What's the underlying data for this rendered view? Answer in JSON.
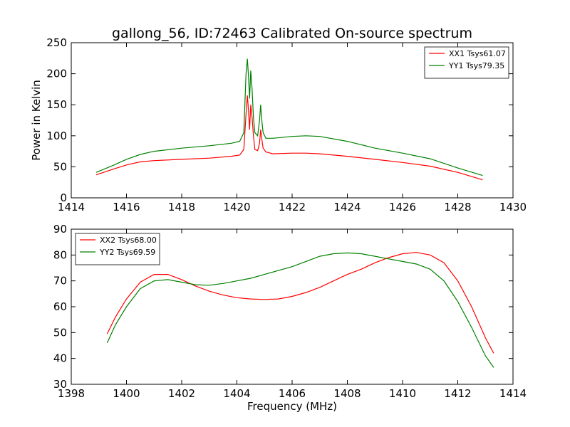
{
  "chart_data": [
    {
      "type": "line",
      "title": "gallong_56, ID:72463 Calibrated On-source spectrum",
      "xlabel": "",
      "ylabel": "Power in Kelvin",
      "xlim": [
        1414,
        1430
      ],
      "ylim": [
        0,
        250
      ],
      "xticks": [
        "1414",
        "1416",
        "1418",
        "1420",
        "1422",
        "1424",
        "1426",
        "1428",
        "1430"
      ],
      "yticks": [
        "0",
        "50",
        "100",
        "150",
        "200",
        "250"
      ],
      "grid": false,
      "legend": "top-right",
      "series": [
        {
          "name": "XX1 Tsys61.07",
          "color": "#ff0000",
          "x": [
            1414.9,
            1415.5,
            1416.0,
            1416.5,
            1417.0,
            1418.0,
            1419.0,
            1419.8,
            1420.1,
            1420.25,
            1420.33,
            1420.38,
            1420.42,
            1420.46,
            1420.5,
            1420.55,
            1420.6,
            1420.65,
            1420.75,
            1420.82,
            1420.86,
            1420.9,
            1420.95,
            1421.05,
            1421.3,
            1422.0,
            1422.5,
            1423.0,
            1424.0,
            1425.0,
            1426.0,
            1427.0,
            1428.0,
            1428.9
          ],
          "y": [
            37,
            46,
            53,
            58,
            60,
            62,
            64,
            67,
            69,
            78,
            135,
            165,
            140,
            110,
            150,
            130,
            100,
            78,
            76,
            88,
            110,
            95,
            80,
            74,
            71,
            72,
            72,
            71,
            67,
            62,
            57,
            51,
            41,
            29
          ]
        },
        {
          "name": "YY1 Tsys79.35",
          "color": "#008000",
          "x": [
            1414.9,
            1415.5,
            1416.0,
            1416.5,
            1417.0,
            1418.0,
            1419.0,
            1419.8,
            1420.1,
            1420.25,
            1420.33,
            1420.38,
            1420.42,
            1420.46,
            1420.5,
            1420.55,
            1420.6,
            1420.65,
            1420.75,
            1420.82,
            1420.86,
            1420.9,
            1420.95,
            1421.05,
            1421.3,
            1422.0,
            1422.5,
            1423.0,
            1424.0,
            1425.0,
            1426.0,
            1427.0,
            1428.0,
            1428.9
          ],
          "y": [
            41,
            52,
            62,
            70,
            75,
            80,
            84,
            88,
            91,
            105,
            200,
            224,
            195,
            160,
            205,
            175,
            130,
            105,
            100,
            125,
            150,
            125,
            105,
            96,
            96,
            99,
            100,
            99,
            91,
            80,
            72,
            63,
            48,
            36
          ]
        }
      ]
    },
    {
      "type": "line",
      "title": "",
      "xlabel": "Frequency (MHz)",
      "ylabel": "",
      "xlim": [
        1398,
        1414
      ],
      "ylim": [
        30,
        90
      ],
      "xticks": [
        "1398",
        "1400",
        "1402",
        "1404",
        "1406",
        "1408",
        "1410",
        "1412",
        "1414"
      ],
      "yticks": [
        "30",
        "40",
        "50",
        "60",
        "70",
        "80",
        "90"
      ],
      "grid": false,
      "legend": "top-left",
      "series": [
        {
          "name": "XX2 Tsys68.00",
          "color": "#ff0000",
          "x": [
            1399.3,
            1399.6,
            1400.0,
            1400.5,
            1401.0,
            1401.5,
            1402.0,
            1402.5,
            1403.0,
            1403.5,
            1404.0,
            1404.5,
            1405.0,
            1405.5,
            1406.0,
            1406.5,
            1407.0,
            1407.5,
            1408.0,
            1408.5,
            1409.0,
            1409.5,
            1410.0,
            1410.5,
            1411.0,
            1411.5,
            1412.0,
            1412.5,
            1413.0,
            1413.3
          ],
          "y": [
            49.5,
            56,
            63,
            69.5,
            72.5,
            72.5,
            70.5,
            68,
            66,
            64.5,
            63.5,
            63,
            62.8,
            63,
            64,
            65.5,
            67.5,
            70,
            72.5,
            74.5,
            77,
            79,
            80.5,
            81,
            80,
            77,
            70,
            60,
            48,
            42
          ]
        },
        {
          "name": "YY2 Tsys69.59",
          "color": "#008000",
          "x": [
            1399.3,
            1399.6,
            1400.0,
            1400.5,
            1401.0,
            1401.5,
            1402.0,
            1402.5,
            1403.0,
            1403.5,
            1404.0,
            1404.5,
            1405.0,
            1405.5,
            1406.0,
            1406.5,
            1407.0,
            1407.5,
            1408.0,
            1408.5,
            1409.0,
            1409.5,
            1410.0,
            1410.5,
            1411.0,
            1411.5,
            1412.0,
            1412.5,
            1413.0,
            1413.3
          ],
          "y": [
            46,
            53,
            60,
            67,
            70,
            70.5,
            69.5,
            68.5,
            68.3,
            69,
            70,
            71,
            72.5,
            74,
            75.5,
            77.5,
            79.5,
            80.5,
            80.8,
            80.5,
            79.5,
            78.5,
            77.5,
            76.5,
            74.5,
            70,
            62,
            52,
            41,
            36.5
          ]
        }
      ]
    }
  ]
}
